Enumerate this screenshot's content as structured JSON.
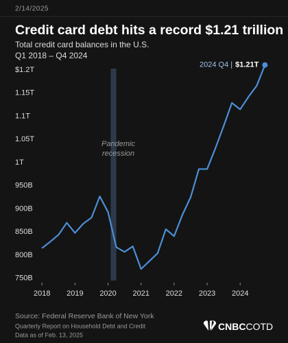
{
  "chart_data": {
    "type": "line",
    "date": "2/14/2025",
    "title": "Credit card debt hits a record $1.21 trillion",
    "subtitle": [
      "Total credit card balances in the U.S.",
      "Q1 2018 – Q4 2024"
    ],
    "x": [
      2018,
      2018.25,
      2018.5,
      2018.75,
      2019,
      2019.25,
      2019.5,
      2019.75,
      2020,
      2020.25,
      2020.5,
      2020.75,
      2021,
      2021.25,
      2021.5,
      2021.75,
      2022,
      2022.25,
      2022.5,
      2022.75,
      2023,
      2023.25,
      2023.5,
      2023.75,
      2024,
      2024.25,
      2024.5,
      2024.75
    ],
    "values": [
      815,
      829,
      844,
      870,
      848,
      868,
      881,
      927,
      893,
      817,
      807,
      819,
      770,
      787,
      804,
      856,
      841,
      887,
      925,
      986,
      986,
      1031,
      1079,
      1129,
      1115,
      1142,
      1166,
      1211
    ],
    "value_labels": [
      null,
      null,
      null,
      null,
      null,
      null,
      null,
      null,
      null,
      null,
      null,
      null,
      null,
      null,
      null,
      null,
      null,
      null,
      null,
      null,
      null,
      null,
      null,
      null,
      null,
      null,
      null,
      "$1.21T"
    ],
    "annotation": "2024 Q4 |",
    "color": "#4d8fd6",
    "xlim": [
      2017.85,
      2024.95
    ],
    "xticks": [
      2018,
      2019,
      2020,
      2021,
      2022,
      2023,
      2024
    ],
    "ylim": [
      745,
      1215
    ],
    "yticks": [
      {
        "value": 750,
        "label": "750B"
      },
      {
        "value": 800,
        "label": "800B"
      },
      {
        "value": 850,
        "label": "850B"
      },
      {
        "value": 900,
        "label": "900B"
      },
      {
        "value": 950,
        "label": "950B"
      },
      {
        "value": 1000,
        "label": "1T"
      },
      {
        "value": 1050,
        "label": "1.05T"
      },
      {
        "value": 1100,
        "label": "1.1T"
      },
      {
        "value": 1150,
        "label": "1.15T"
      },
      {
        "value": 1200,
        "label": "$1.2T"
      }
    ],
    "band": {
      "label": [
        "Pandemic",
        "recession"
      ],
      "x": [
        2020.08,
        2020.25
      ]
    },
    "source": [
      "Source: Federal Reserve Bank of New York",
      "Quarterly Report on Household Debt and Credit",
      "Data as of Feb. 13, 2025"
    ],
    "logo": [
      "CNBC",
      "COTD"
    ]
  }
}
